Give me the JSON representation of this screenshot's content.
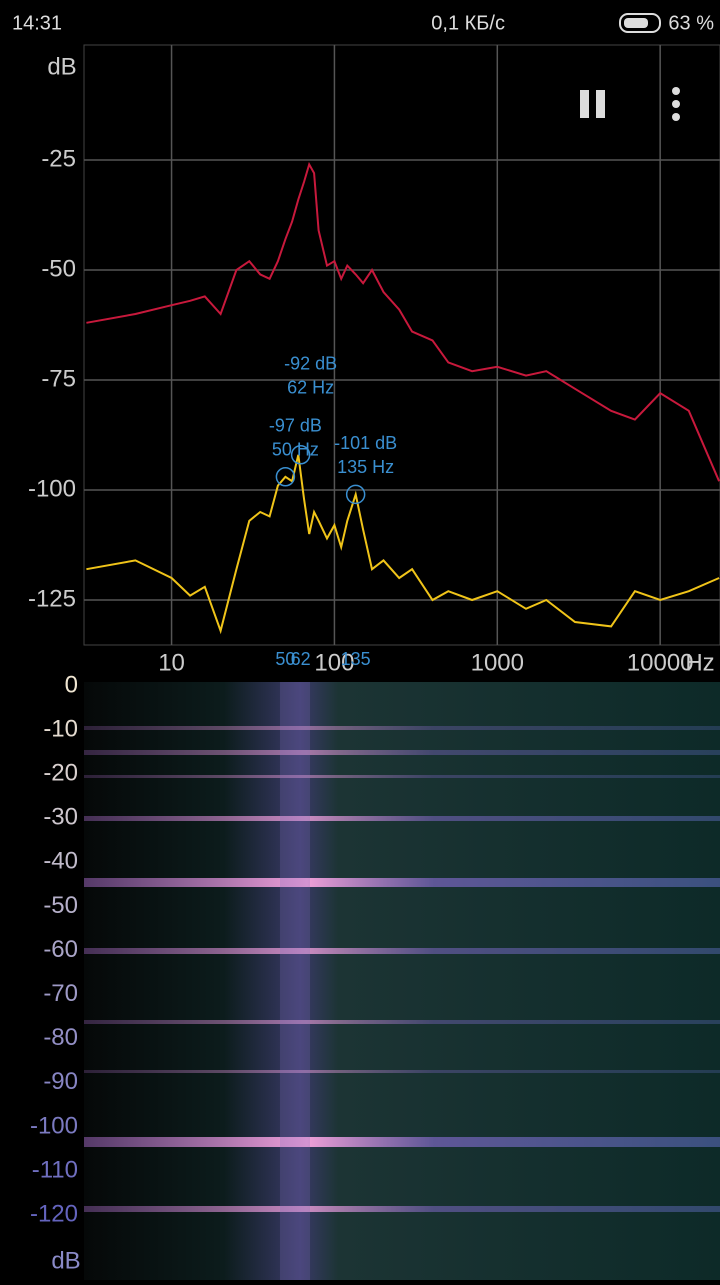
{
  "status_bar": {
    "time": "14:31",
    "network": "0,1 КБ/с",
    "battery": "63 %"
  },
  "chart_data": {
    "type": "line",
    "y_label": "dB",
    "x_label": "Hz",
    "log_x": true,
    "grid": true,
    "x": [
      3,
      6,
      10,
      13,
      16,
      20,
      25,
      30,
      35,
      40,
      45,
      50,
      55,
      60,
      65,
      70,
      75,
      80,
      90,
      100,
      110,
      120,
      135,
      150,
      170,
      200,
      250,
      300,
      400,
      500,
      700,
      1000,
      1500,
      2000,
      3000,
      5000,
      7000,
      10000,
      15000,
      23000
    ],
    "series": [
      {
        "color": "#c8193c",
        "values": [
          -62,
          -60,
          -58,
          -57,
          -56,
          -60,
          -50,
          -48,
          -51,
          -52,
          -48,
          -43,
          -39,
          -34,
          -30,
          -26,
          -28,
          -41,
          -49,
          -48,
          -52,
          -49,
          -51,
          -53,
          -50,
          -55,
          -59,
          -64,
          -66,
          -71,
          -73,
          -72,
          -74,
          -73,
          -77,
          -82,
          -84,
          -78,
          -82,
          -98
        ]
      },
      {
        "color": "#f0c419",
        "values": [
          -118,
          -116,
          -120,
          -124,
          -122,
          -132,
          -118,
          -107,
          -105,
          -106,
          -99,
          -97,
          -98,
          -92,
          -102,
          -110,
          -105,
          -107,
          -111,
          -108,
          -113,
          -107,
          -101,
          -109,
          -118,
          -116,
          -120,
          -118,
          -125,
          -123,
          -125,
          -123,
          -127,
          -125,
          -130,
          -131,
          -123,
          -125,
          -123,
          -120
        ]
      }
    ],
    "xlim": [
      2.9,
      23300
    ],
    "xticks": [
      10,
      100,
      1000,
      10000
    ],
    "ylim": [
      -135,
      0
    ],
    "yticks": [
      -25,
      -50,
      -75,
      -100,
      -125
    ],
    "markers": {
      "color": "#3a8fd0",
      "x": [
        50,
        62,
        135
      ],
      "values": [
        -97,
        -92,
        -101
      ],
      "value_labels": [
        "-97 dB",
        "-92 dB",
        "-101 dB"
      ],
      "x_labels": [
        "50 Hz",
        "62 Hz",
        "135 Hz"
      ]
    }
  },
  "spectrogram": {
    "unit": "dB",
    "yticks": [
      0,
      -10,
      -20,
      -30,
      -40,
      -50,
      -60,
      -70,
      -80,
      -90,
      -100,
      -110,
      -120
    ]
  }
}
